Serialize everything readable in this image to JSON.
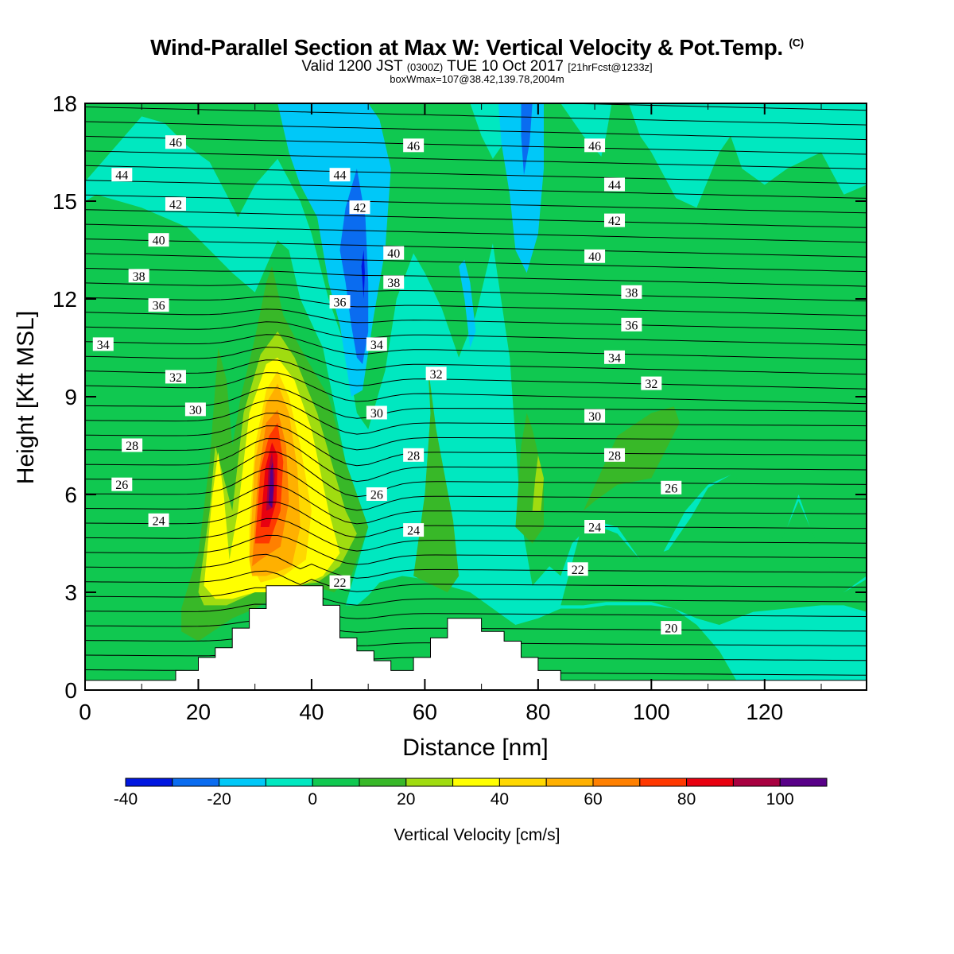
{
  "header": {
    "title": "Wind-Parallel Section at Max W: Vertical Velocity & Pot.Temp.",
    "title_mark": "(C)",
    "valid_prefix": "Valid 1200 JST",
    "valid_utc": "(0300Z)",
    "valid_date": "TUE 10 Oct 2017",
    "forecast_info": "[21hrFcst@1233z]",
    "box_info": "boxWmax=107@38.42,139.78,2004m"
  },
  "chart_data": {
    "type": "heatmap",
    "xlabel": "Distance [nm]",
    "ylabel": "Height [Kft MSL]",
    "xlim": [
      0,
      138
    ],
    "ylim": [
      0,
      18
    ],
    "xticks": [
      "0",
      "20",
      "40",
      "60",
      "80",
      "100",
      "120"
    ],
    "yticks": [
      "0",
      "3",
      "6",
      "9",
      "12",
      "15",
      "18"
    ],
    "colorbar": {
      "label": "Vertical Velocity [cm/s]",
      "levels": [
        -40,
        -30,
        -20,
        -10,
        0,
        10,
        20,
        30,
        40,
        50,
        60,
        70,
        80,
        90,
        100,
        110
      ],
      "tick_labels": [
        "-40",
        "-20",
        "0",
        "20",
        "40",
        "60",
        "80",
        "100"
      ],
      "colors": [
        "#0016e0",
        "#0a6cf0",
        "#00c8f8",
        "#00e8c0",
        "#10c850",
        "#38b828",
        "#a0dc10",
        "#ffff00",
        "#ffd800",
        "#ffb000",
        "#ff8000",
        "#ff3800",
        "#e80010",
        "#a80040",
        "#580088"
      ]
    },
    "background_color": "#10c850",
    "features": [
      {
        "type": "updraft",
        "x": 33,
        "height": 6.5,
        "peak": 107
      },
      {
        "type": "updraft",
        "x": 23,
        "height": 5.0,
        "peak": 45
      },
      {
        "type": "downdraft",
        "x": 48,
        "height": 13.0,
        "peak": -38
      },
      {
        "type": "downdraft",
        "x": 78,
        "height": 17.0,
        "peak": -30
      },
      {
        "type": "updraft",
        "x": 80,
        "height": 6.5,
        "peak": 25
      }
    ],
    "terrain": [
      [
        0,
        0.3
      ],
      [
        16,
        0.3
      ],
      [
        16,
        0.6
      ],
      [
        20,
        0.6
      ],
      [
        20,
        1.0
      ],
      [
        23,
        1.0
      ],
      [
        23,
        1.3
      ],
      [
        26,
        1.3
      ],
      [
        26,
        1.9
      ],
      [
        29,
        1.9
      ],
      [
        29,
        2.5
      ],
      [
        32,
        2.5
      ],
      [
        32,
        3.2
      ],
      [
        42,
        3.2
      ],
      [
        42,
        2.6
      ],
      [
        45,
        2.6
      ],
      [
        45,
        1.6
      ],
      [
        48,
        1.6
      ],
      [
        48,
        1.2
      ],
      [
        51,
        1.2
      ],
      [
        51,
        0.9
      ],
      [
        54,
        0.9
      ],
      [
        54,
        0.6
      ],
      [
        58,
        0.6
      ],
      [
        58,
        1.0
      ],
      [
        61,
        1.0
      ],
      [
        61,
        1.6
      ],
      [
        64,
        1.6
      ],
      [
        64,
        2.2
      ],
      [
        70,
        2.2
      ],
      [
        70,
        1.8
      ],
      [
        74,
        1.8
      ],
      [
        74,
        1.5
      ],
      [
        77,
        1.5
      ],
      [
        77,
        1.0
      ],
      [
        80,
        1.0
      ],
      [
        80,
        0.6
      ],
      [
        84,
        0.6
      ],
      [
        84,
        0.3
      ],
      [
        138,
        0.3
      ]
    ],
    "isentropes": {
      "units": "K (theta - 273 labeled)",
      "labels": [
        {
          "value": "46",
          "x": 16,
          "y": 16.8
        },
        {
          "value": "46",
          "x": 58,
          "y": 16.7
        },
        {
          "value": "46",
          "x": 90,
          "y": 16.7
        },
        {
          "value": "44",
          "x": 6.5,
          "y": 15.8
        },
        {
          "value": "44",
          "x": 45,
          "y": 15.8
        },
        {
          "value": "44",
          "x": 93.5,
          "y": 15.5
        },
        {
          "value": "42",
          "x": 16,
          "y": 14.9
        },
        {
          "value": "42",
          "x": 48.5,
          "y": 14.8
        },
        {
          "value": "42",
          "x": 93.5,
          "y": 14.4
        },
        {
          "value": "40",
          "x": 13,
          "y": 13.8
        },
        {
          "value": "40",
          "x": 54.5,
          "y": 13.4
        },
        {
          "value": "40",
          "x": 90,
          "y": 13.3
        },
        {
          "value": "38",
          "x": 9.5,
          "y": 12.7
        },
        {
          "value": "38",
          "x": 54.5,
          "y": 12.5
        },
        {
          "value": "38",
          "x": 96.5,
          "y": 12.2
        },
        {
          "value": "36",
          "x": 13,
          "y": 11.8
        },
        {
          "value": "36",
          "x": 45,
          "y": 11.9
        },
        {
          "value": "36",
          "x": 96.5,
          "y": 11.2
        },
        {
          "value": "34",
          "x": 3.2,
          "y": 10.6
        },
        {
          "value": "34",
          "x": 51.5,
          "y": 10.6
        },
        {
          "value": "34",
          "x": 93.5,
          "y": 10.2
        },
        {
          "value": "32",
          "x": 16,
          "y": 9.6
        },
        {
          "value": "32",
          "x": 62,
          "y": 9.7
        },
        {
          "value": "32",
          "x": 100,
          "y": 9.4
        },
        {
          "value": "30",
          "x": 19.5,
          "y": 8.6
        },
        {
          "value": "30",
          "x": 51.5,
          "y": 8.5
        },
        {
          "value": "30",
          "x": 90,
          "y": 8.4
        },
        {
          "value": "28",
          "x": 8.3,
          "y": 7.5
        },
        {
          "value": "28",
          "x": 58,
          "y": 7.2
        },
        {
          "value": "28",
          "x": 93.5,
          "y": 7.2
        },
        {
          "value": "26",
          "x": 6.5,
          "y": 6.3
        },
        {
          "value": "26",
          "x": 51.5,
          "y": 6.0
        },
        {
          "value": "26",
          "x": 103.5,
          "y": 6.2
        },
        {
          "value": "24",
          "x": 13,
          "y": 5.2
        },
        {
          "value": "24",
          "x": 58,
          "y": 4.9
        },
        {
          "value": "24",
          "x": 90,
          "y": 5.0
        },
        {
          "value": "22",
          "x": 45,
          "y": 3.3
        },
        {
          "value": "22",
          "x": 87,
          "y": 3.7
        },
        {
          "value": "20",
          "x": 103.5,
          "y": 1.9
        }
      ]
    }
  }
}
